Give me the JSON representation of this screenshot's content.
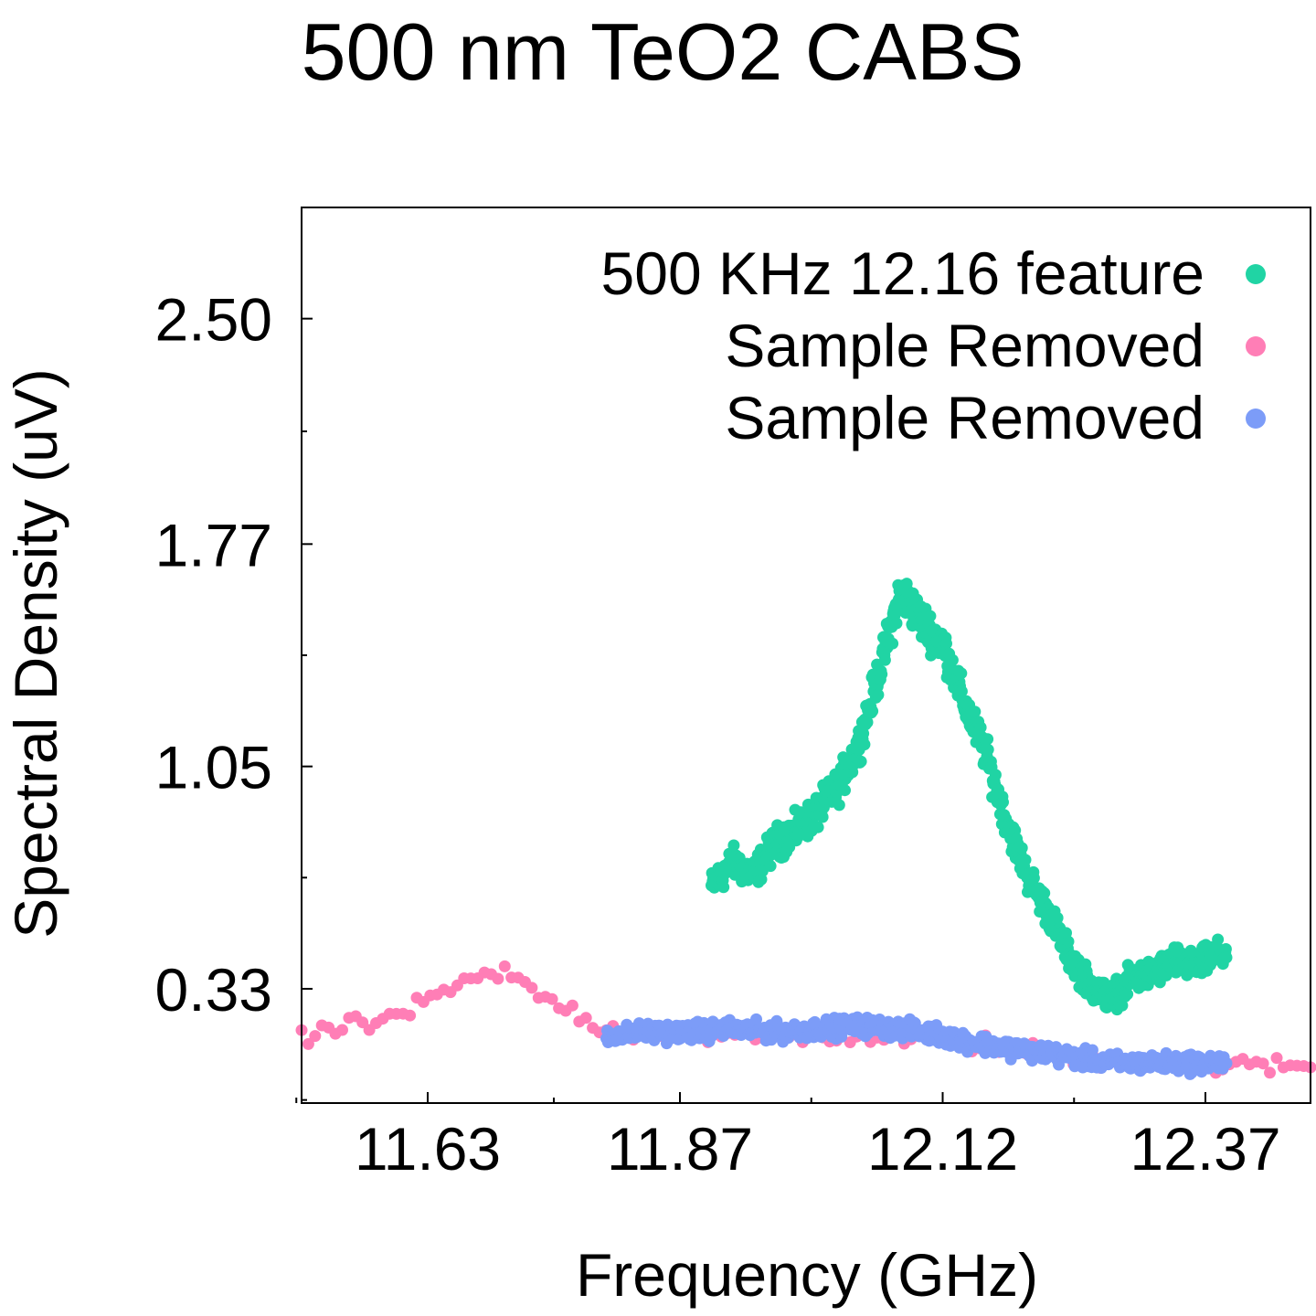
{
  "chart_data": {
    "type": "scatter",
    "title": "500 nm TeO2 CABS",
    "xlabel": "Frequency (GHz)",
    "ylabel": "Spectral Density (uV)",
    "xlim": [
      11.51,
      12.47
    ],
    "ylim": [
      -0.04,
      2.86
    ],
    "x_ticks": [
      11.63,
      11.87,
      12.12,
      12.37
    ],
    "x_tick_labels": [
      "11.63",
      "11.87",
      "12.12",
      "12.37"
    ],
    "y_ticks": [
      0.33,
      1.05,
      1.77,
      2.5
    ],
    "y_tick_labels": [
      "0.33",
      "1.05",
      "1.77",
      "2.50"
    ],
    "grid": false,
    "legend_position": "top-right",
    "series": [
      {
        "name": "500 KHz 12.16 feature",
        "color": "#20d4a4",
        "x_range": [
          11.9,
          12.39
        ],
        "points": [
          [
            11.9,
            0.66
          ],
          [
            11.92,
            0.74
          ],
          [
            11.94,
            0.7
          ],
          [
            11.96,
            0.8
          ],
          [
            11.98,
            0.84
          ],
          [
            12.0,
            0.9
          ],
          [
            12.02,
            0.98
          ],
          [
            12.04,
            1.12
          ],
          [
            12.06,
            1.36
          ],
          [
            12.08,
            1.62
          ],
          [
            12.1,
            1.52
          ],
          [
            12.12,
            1.45
          ],
          [
            12.14,
            1.26
          ],
          [
            12.16,
            1.1
          ],
          [
            12.18,
            0.88
          ],
          [
            12.2,
            0.7
          ],
          [
            12.22,
            0.58
          ],
          [
            12.24,
            0.44
          ],
          [
            12.26,
            0.34
          ],
          [
            12.28,
            0.3
          ],
          [
            12.3,
            0.36
          ],
          [
            12.32,
            0.38
          ],
          [
            12.34,
            0.42
          ],
          [
            12.36,
            0.4
          ],
          [
            12.38,
            0.44
          ]
        ],
        "noise": 0.05
      },
      {
        "name": "Sample Removed",
        "color": "#ff7eb6",
        "x_range": [
          11.51,
          12.47
        ],
        "points": [
          [
            11.51,
            0.16
          ],
          [
            11.54,
            0.2
          ],
          [
            11.58,
            0.22
          ],
          [
            11.62,
            0.27
          ],
          [
            11.66,
            0.34
          ],
          [
            11.7,
            0.39
          ],
          [
            11.73,
            0.32
          ],
          [
            11.76,
            0.27
          ],
          [
            11.8,
            0.2
          ],
          [
            11.84,
            0.18
          ],
          [
            11.88,
            0.19
          ],
          [
            11.92,
            0.17
          ],
          [
            11.96,
            0.17
          ],
          [
            12.0,
            0.18
          ],
          [
            12.04,
            0.18
          ],
          [
            12.08,
            0.17
          ],
          [
            12.12,
            0.16
          ],
          [
            12.16,
            0.15
          ],
          [
            12.2,
            0.13
          ],
          [
            12.24,
            0.11
          ],
          [
            12.28,
            0.1
          ],
          [
            12.32,
            0.1
          ],
          [
            12.36,
            0.09
          ],
          [
            12.4,
            0.08
          ],
          [
            12.44,
            0.08
          ],
          [
            12.47,
            0.08
          ]
        ],
        "noise": 0.025
      },
      {
        "name": "Sample Removed",
        "color": "#7c9cf8",
        "x_range": [
          11.8,
          12.39
        ],
        "points": [
          [
            11.8,
            0.18
          ],
          [
            11.84,
            0.19
          ],
          [
            11.88,
            0.19
          ],
          [
            11.92,
            0.2
          ],
          [
            11.96,
            0.19
          ],
          [
            12.0,
            0.2
          ],
          [
            12.04,
            0.21
          ],
          [
            12.08,
            0.2
          ],
          [
            12.12,
            0.18
          ],
          [
            12.16,
            0.15
          ],
          [
            12.2,
            0.13
          ],
          [
            12.24,
            0.11
          ],
          [
            12.28,
            0.09
          ],
          [
            12.32,
            0.09
          ],
          [
            12.36,
            0.09
          ],
          [
            12.39,
            0.09
          ]
        ],
        "noise": 0.025
      }
    ]
  }
}
